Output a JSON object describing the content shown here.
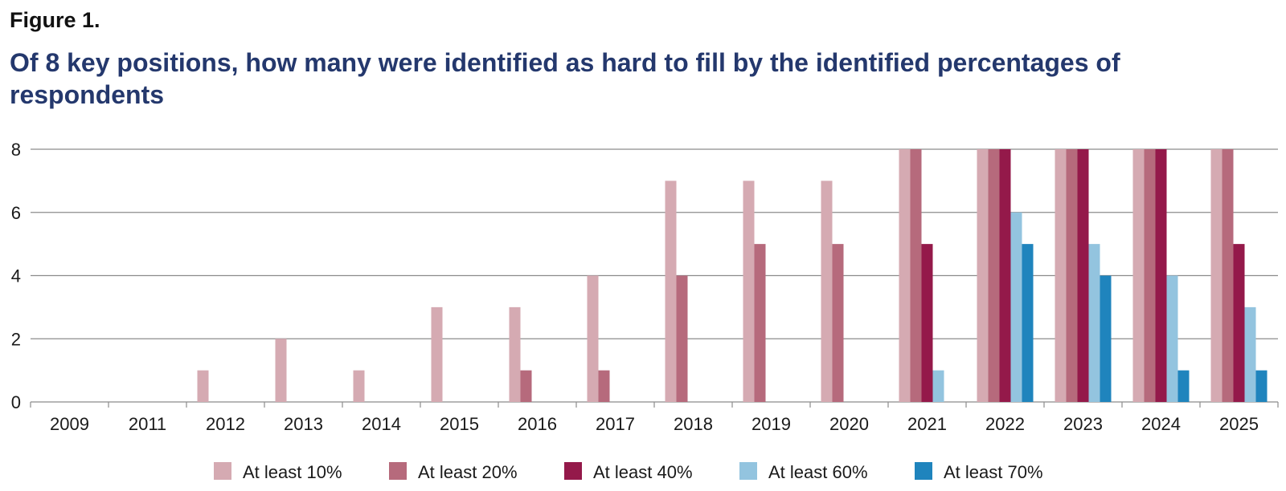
{
  "figure_label": "Figure 1.",
  "chart_data": {
    "type": "bar",
    "title": "Of 8 key positions, how many were identified as hard to fill by the identified percentages of respondents",
    "xlabel": "",
    "ylabel": "",
    "ylim": [
      0,
      8
    ],
    "yticks": [
      0,
      2,
      4,
      6,
      8
    ],
    "grid": true,
    "legend_position": "bottom",
    "categories": [
      "2009",
      "2011",
      "2012",
      "2013",
      "2014",
      "2015",
      "2016",
      "2017",
      "2018",
      "2019",
      "2020",
      "2021",
      "2022",
      "2023",
      "2024",
      "2025"
    ],
    "series": [
      {
        "name": "At least 10%",
        "color": "#d5aab2",
        "values": [
          0,
          0,
          1,
          2,
          1,
          3,
          3,
          4,
          7,
          7,
          7,
          8,
          8,
          8,
          8,
          8
        ]
      },
      {
        "name": "At least 20%",
        "color": "#b66a7c",
        "values": [
          0,
          0,
          0,
          0,
          0,
          0,
          1,
          1,
          4,
          5,
          5,
          8,
          8,
          8,
          8,
          8
        ]
      },
      {
        "name": "At least 40%",
        "color": "#94194a",
        "values": [
          0,
          0,
          0,
          0,
          0,
          0,
          0,
          0,
          0,
          0,
          0,
          5,
          8,
          8,
          8,
          5
        ]
      },
      {
        "name": "At least 60%",
        "color": "#93c4df",
        "values": [
          0,
          0,
          0,
          0,
          0,
          0,
          0,
          0,
          0,
          0,
          0,
          1,
          6,
          5,
          4,
          3
        ]
      },
      {
        "name": "At least 70%",
        "color": "#1f84bd",
        "values": [
          0,
          0,
          0,
          0,
          0,
          0,
          0,
          0,
          0,
          0,
          0,
          0,
          5,
          4,
          1,
          1
        ]
      }
    ]
  }
}
